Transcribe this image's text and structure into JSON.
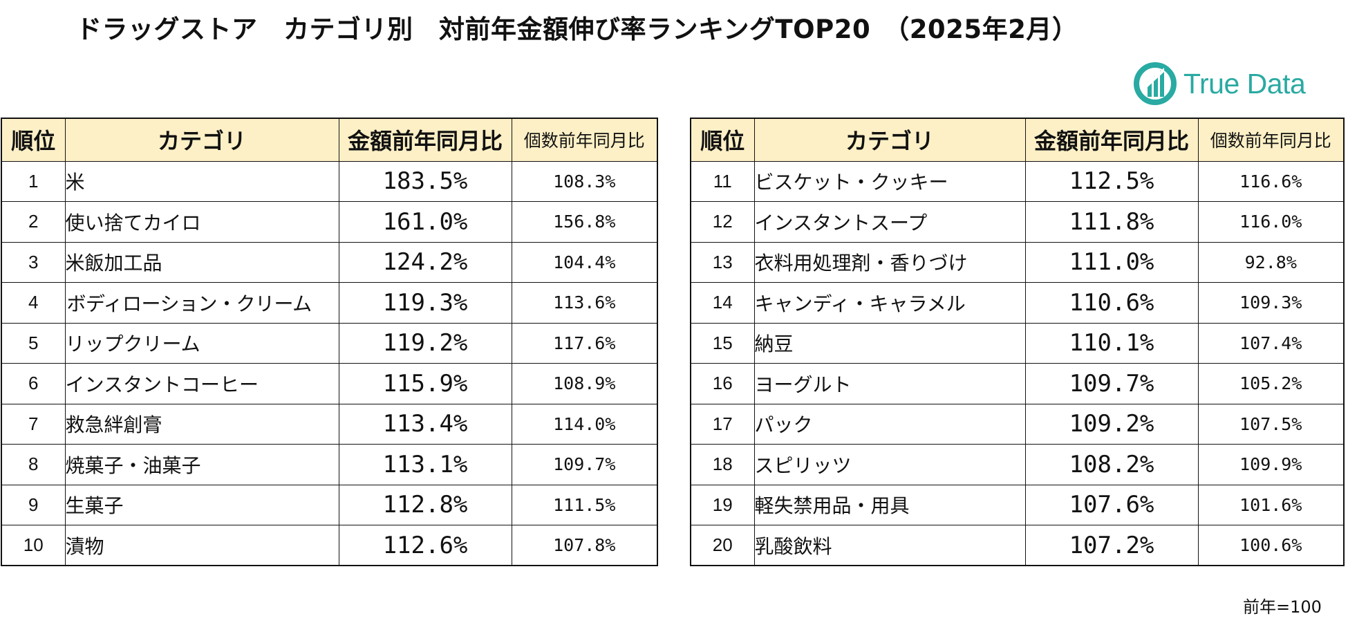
{
  "title": "ドラッグストア　カテゴリ別　対前年金額伸び率ランキングTOP20　（2025年2月）",
  "logo": {
    "text": "True Data",
    "color": "#29aaa2"
  },
  "table": {
    "headers": {
      "rank": "順位",
      "category": "カテゴリ",
      "amount_yoy": "金額前年同月比",
      "units_yoy": "個数前年同月比"
    },
    "header_bg": "#fdf0c6",
    "rows": [
      {
        "rank": "1",
        "category": "米",
        "amount_yoy": "183.5%",
        "units_yoy": "108.3%"
      },
      {
        "rank": "2",
        "category": "使い捨てカイロ",
        "amount_yoy": "161.0%",
        "units_yoy": "156.8%"
      },
      {
        "rank": "3",
        "category": "米飯加工品",
        "amount_yoy": "124.2%",
        "units_yoy": "104.4%"
      },
      {
        "rank": "4",
        "category": "ボディローション・クリーム",
        "amount_yoy": "119.3%",
        "units_yoy": "113.6%"
      },
      {
        "rank": "5",
        "category": "リップクリーム",
        "amount_yoy": "119.2%",
        "units_yoy": "117.6%"
      },
      {
        "rank": "6",
        "category": "インスタントコーヒー",
        "amount_yoy": "115.9%",
        "units_yoy": "108.9%"
      },
      {
        "rank": "7",
        "category": "救急絆創膏",
        "amount_yoy": "113.4%",
        "units_yoy": "114.0%"
      },
      {
        "rank": "8",
        "category": "焼菓子・油菓子",
        "amount_yoy": "113.1%",
        "units_yoy": "109.7%"
      },
      {
        "rank": "9",
        "category": "生菓子",
        "amount_yoy": "112.8%",
        "units_yoy": "111.5%"
      },
      {
        "rank": "10",
        "category": "漬物",
        "amount_yoy": "112.6%",
        "units_yoy": "107.8%"
      },
      {
        "rank": "11",
        "category": "ビスケット・クッキー",
        "amount_yoy": "112.5%",
        "units_yoy": "116.6%"
      },
      {
        "rank": "12",
        "category": "インスタントスープ",
        "amount_yoy": "111.8%",
        "units_yoy": "116.0%"
      },
      {
        "rank": "13",
        "category": "衣料用処理剤・香りづけ",
        "amount_yoy": "111.0%",
        "units_yoy": "92.8%"
      },
      {
        "rank": "14",
        "category": "キャンディ・キャラメル",
        "amount_yoy": "110.6%",
        "units_yoy": "109.3%"
      },
      {
        "rank": "15",
        "category": "納豆",
        "amount_yoy": "110.1%",
        "units_yoy": "107.4%"
      },
      {
        "rank": "16",
        "category": "ヨーグルト",
        "amount_yoy": "109.7%",
        "units_yoy": "105.2%"
      },
      {
        "rank": "17",
        "category": "パック",
        "amount_yoy": "109.2%",
        "units_yoy": "107.5%"
      },
      {
        "rank": "18",
        "category": "スピリッツ",
        "amount_yoy": "108.2%",
        "units_yoy": "109.9%"
      },
      {
        "rank": "19",
        "category": "軽失禁用品・用具",
        "amount_yoy": "107.6%",
        "units_yoy": "101.6%"
      },
      {
        "rank": "20",
        "category": "乳酸飲料",
        "amount_yoy": "107.2%",
        "units_yoy": "100.6%"
      }
    ]
  },
  "footnote": "前年=100"
}
